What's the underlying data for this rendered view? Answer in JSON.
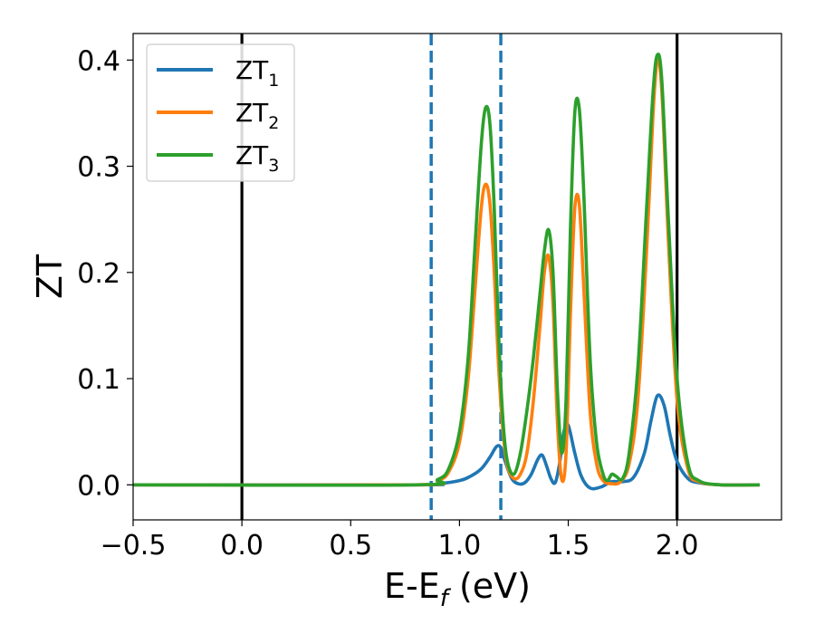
{
  "chart_data": {
    "type": "line",
    "xlabel_main": "E-E",
    "xlabel_sub": "f",
    "xlabel_unit": " (eV)",
    "ylabel": "ZT",
    "xlim": [
      -0.5,
      2.48
    ],
    "ylim": [
      -0.033,
      0.425
    ],
    "xticks": [
      -0.5,
      0.0,
      0.5,
      1.0,
      1.5,
      2.0
    ],
    "xtick_labels": [
      "−0.5",
      "0.0",
      "0.5",
      "1.0",
      "1.5",
      "2.0"
    ],
    "yticks": [
      0.0,
      0.1,
      0.2,
      0.3,
      0.4
    ],
    "ytick_labels": [
      "0.0",
      "0.1",
      "0.2",
      "0.3",
      "0.4"
    ],
    "grid": false,
    "legend_placement": "top-left",
    "vertical_lines": [
      {
        "x": 0.0,
        "style": "solid",
        "color": "#000000"
      },
      {
        "x": 2.0,
        "style": "solid",
        "color": "#000000"
      },
      {
        "x": 0.87,
        "style": "dashed",
        "color": "#1f77b4"
      },
      {
        "x": 1.19,
        "style": "dashed",
        "color": "#1f77b4"
      }
    ],
    "series": [
      {
        "name": "ZT",
        "sub": "1",
        "color": "#1f77b4",
        "x": [
          -0.5,
          0.8,
          0.9,
          1.0,
          1.05,
          1.1,
          1.14,
          1.17,
          1.19,
          1.21,
          1.24,
          1.27,
          1.3,
          1.33,
          1.36,
          1.38,
          1.4,
          1.42,
          1.44,
          1.46,
          1.48,
          1.5,
          1.53,
          1.56,
          1.6,
          1.65,
          1.7,
          1.75,
          1.8,
          1.85,
          1.88,
          1.91,
          1.94,
          1.97,
          2.0,
          2.05,
          2.1,
          2.2,
          2.38
        ],
        "y": [
          0.0,
          0.0,
          0.001,
          0.004,
          0.008,
          0.015,
          0.026,
          0.036,
          0.035,
          0.022,
          0.006,
          0.001,
          0.002,
          0.01,
          0.024,
          0.028,
          0.018,
          0.006,
          0.002,
          0.02,
          0.05,
          0.056,
          0.03,
          0.008,
          -0.003,
          -0.002,
          0.003,
          0.003,
          0.007,
          0.03,
          0.06,
          0.084,
          0.075,
          0.045,
          0.022,
          0.006,
          0.002,
          0.0,
          0.0
        ]
      },
      {
        "name": "ZT",
        "sub": "2",
        "color": "#ff7f0e",
        "x": [
          -0.5,
          0.8,
          0.9,
          0.95,
          1.0,
          1.04,
          1.07,
          1.1,
          1.12,
          1.14,
          1.16,
          1.18,
          1.2,
          1.22,
          1.25,
          1.28,
          1.31,
          1.34,
          1.37,
          1.39,
          1.41,
          1.43,
          1.45,
          1.47,
          1.49,
          1.51,
          1.53,
          1.55,
          1.57,
          1.6,
          1.63,
          1.66,
          1.7,
          1.74,
          1.78,
          1.82,
          1.86,
          1.89,
          1.91,
          1.93,
          1.96,
          2.0,
          2.05,
          2.1,
          2.2,
          2.38
        ],
        "y": [
          0.0,
          0.0,
          0.004,
          0.012,
          0.04,
          0.1,
          0.18,
          0.26,
          0.283,
          0.265,
          0.2,
          0.11,
          0.05,
          0.018,
          0.006,
          0.01,
          0.03,
          0.08,
          0.15,
          0.2,
          0.215,
          0.17,
          0.06,
          0.005,
          0.03,
          0.16,
          0.26,
          0.265,
          0.19,
          0.07,
          0.02,
          0.004,
          0.001,
          0.003,
          0.02,
          0.08,
          0.22,
          0.35,
          0.4,
          0.37,
          0.23,
          0.08,
          0.015,
          0.003,
          0.0,
          0.0
        ]
      },
      {
        "name": "ZT",
        "sub": "3",
        "color": "#2ca02c",
        "x": [
          -0.5,
          0.8,
          0.9,
          0.95,
          1.0,
          1.04,
          1.07,
          1.1,
          1.12,
          1.14,
          1.16,
          1.18,
          1.2,
          1.22,
          1.25,
          1.28,
          1.31,
          1.34,
          1.37,
          1.39,
          1.41,
          1.43,
          1.45,
          1.47,
          1.49,
          1.51,
          1.53,
          1.55,
          1.57,
          1.6,
          1.63,
          1.66,
          1.68,
          1.7,
          1.72,
          1.75,
          1.78,
          1.82,
          1.86,
          1.89,
          1.91,
          1.93,
          1.96,
          2.0,
          2.05,
          2.1,
          2.2,
          2.38
        ],
        "y": [
          0.0,
          0.0,
          0.005,
          0.015,
          0.05,
          0.12,
          0.22,
          0.32,
          0.355,
          0.34,
          0.26,
          0.14,
          0.06,
          0.022,
          0.01,
          0.03,
          0.07,
          0.12,
          0.18,
          0.22,
          0.24,
          0.2,
          0.09,
          0.03,
          0.08,
          0.24,
          0.35,
          0.355,
          0.28,
          0.12,
          0.04,
          0.01,
          0.004,
          0.01,
          0.008,
          0.006,
          0.03,
          0.11,
          0.26,
          0.37,
          0.405,
          0.38,
          0.25,
          0.1,
          0.02,
          0.004,
          0.0,
          0.0
        ]
      }
    ]
  }
}
